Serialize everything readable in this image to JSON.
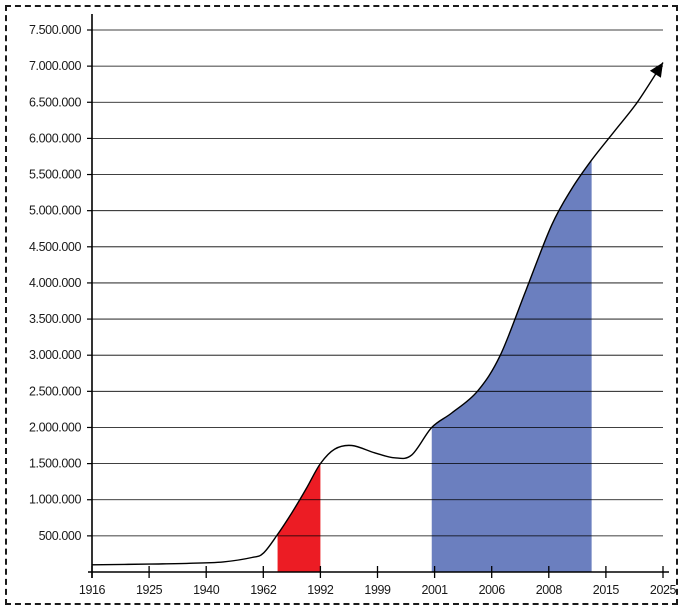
{
  "chart_data": {
    "type": "line",
    "title": "",
    "xlabel": "",
    "ylabel": "",
    "ylim": [
      0,
      7500000
    ],
    "grid": true,
    "y_ticks": [
      {
        "value": 500000,
        "label": "500.000"
      },
      {
        "value": 1000000,
        "label": "1.000.000"
      },
      {
        "value": 1500000,
        "label": "1.500.000"
      },
      {
        "value": 2000000,
        "label": "2.000.000"
      },
      {
        "value": 2500000,
        "label": "2.500.000"
      },
      {
        "value": 3000000,
        "label": "3.000.000"
      },
      {
        "value": 3500000,
        "label": "3.500.000"
      },
      {
        "value": 4000000,
        "label": "4.000.000"
      },
      {
        "value": 4500000,
        "label": "4.500.000"
      },
      {
        "value": 5000000,
        "label": "5.000.000"
      },
      {
        "value": 5500000,
        "label": "5.500.000"
      },
      {
        "value": 6000000,
        "label": "6.000.000"
      },
      {
        "value": 6500000,
        "label": "6.500.000"
      },
      {
        "value": 7000000,
        "label": "7.000.000"
      },
      {
        "value": 7500000,
        "label": "7.500.000"
      }
    ],
    "categories": [
      "1916",
      "1925",
      "1940",
      "1962",
      "1992",
      "1999",
      "2001",
      "2006",
      "2008",
      "2015",
      "2025"
    ],
    "series": [
      {
        "x": [
          0,
          1,
          1.7,
          2.3,
          2.8,
          3.0,
          3.25,
          3.5,
          3.75,
          4.0,
          4.25,
          4.55,
          4.95,
          5.3,
          5.6,
          5.95,
          6.3,
          6.75,
          7.15,
          7.6,
          8.05,
          8.4,
          8.75,
          9.15,
          9.55,
          10.0
        ],
        "values": [
          100000,
          110000,
          120000,
          140000,
          200000,
          260000,
          520000,
          820000,
          1150000,
          1500000,
          1700000,
          1750000,
          1650000,
          1580000,
          1620000,
          2000000,
          2200000,
          2500000,
          3000000,
          3900000,
          4800000,
          5300000,
          5700000,
          6100000,
          6500000,
          7050000
        ]
      }
    ],
    "highlights": [
      {
        "color": "#ec1c24",
        "from": 3.25,
        "to": 4.0
      },
      {
        "color": "#6b7fbf",
        "from": 5.95,
        "to": 8.75
      }
    ],
    "line_color": "#000000",
    "grid_color": "#000000"
  }
}
